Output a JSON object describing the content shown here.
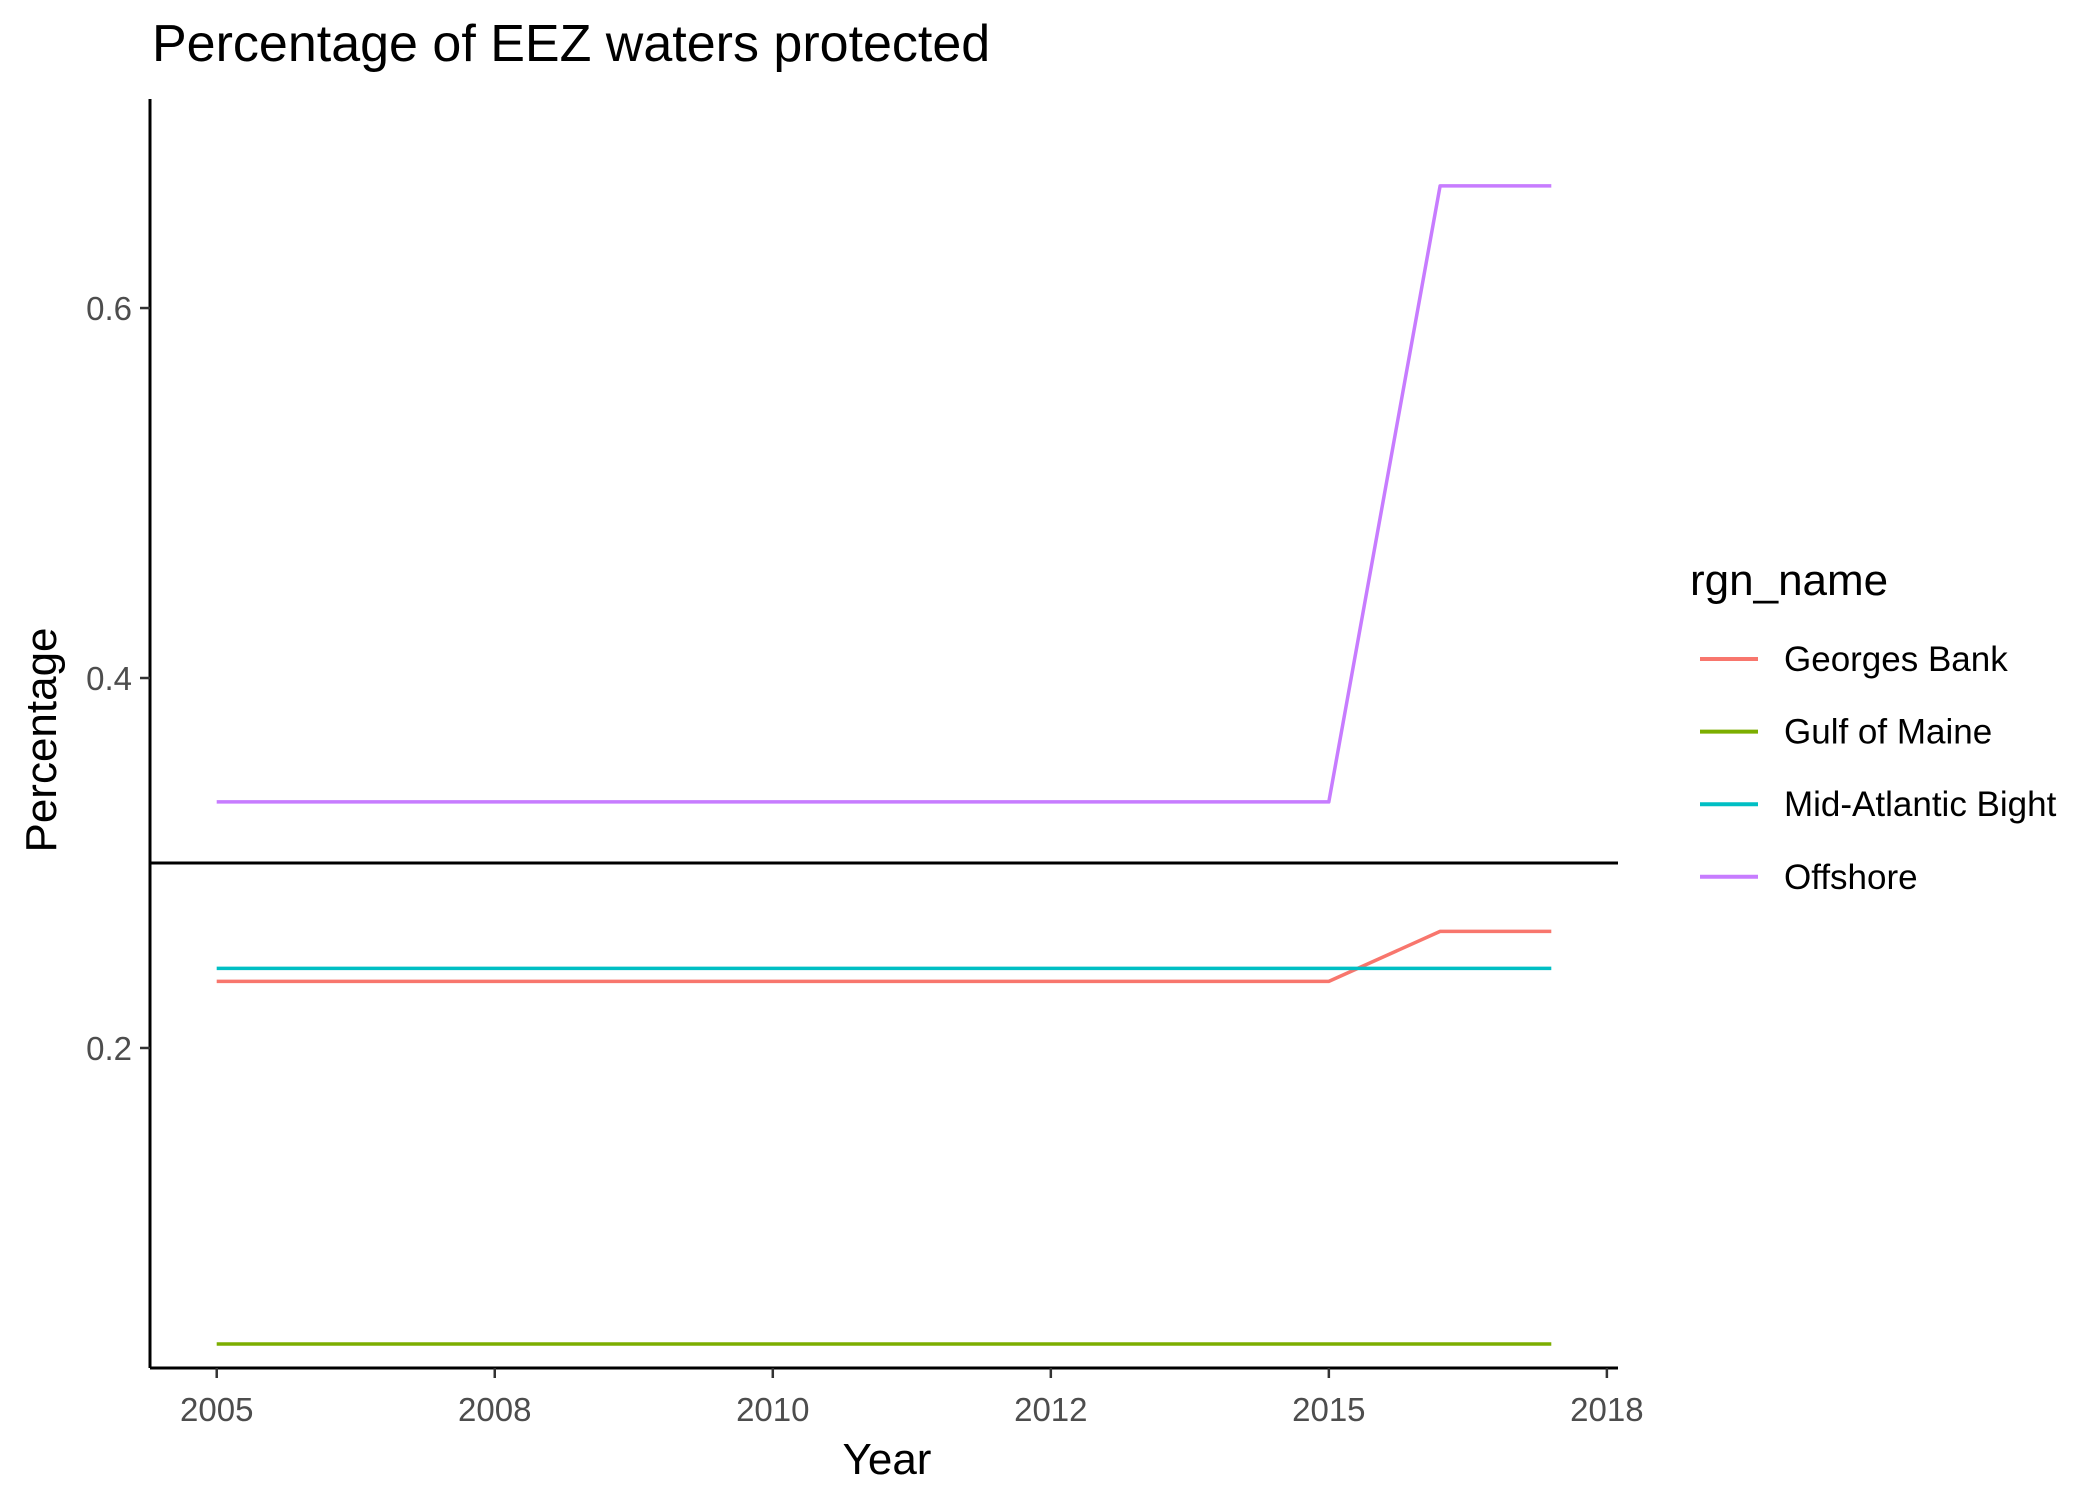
{
  "chart_data": {
    "type": "line",
    "title": "Percentage of EEZ waters protected",
    "xlabel": "Year",
    "ylabel": "Percentage",
    "x_ticks": [
      {
        "value": 2005,
        "label": "2005"
      },
      {
        "value": 2007.5,
        "label": "2008"
      },
      {
        "value": 2010,
        "label": "2010"
      },
      {
        "value": 2012.5,
        "label": "2012"
      },
      {
        "value": 2015,
        "label": "2015"
      },
      {
        "value": 2017.5,
        "label": "2018"
      }
    ],
    "y_ticks": [
      {
        "value": 0.2,
        "label": "0.2"
      },
      {
        "value": 0.4,
        "label": "0.4"
      },
      {
        "value": 0.6,
        "label": "0.6"
      }
    ],
    "xlim": [
      2004.4,
      2017.6
    ],
    "ylim": [
      0.027,
      0.713
    ],
    "grid": false,
    "reference_line": {
      "y": 0.3,
      "color": "#000000"
    },
    "legend": {
      "title": "rgn_name",
      "position": "right"
    },
    "x": [
      2005,
      2006,
      2007,
      2008,
      2009,
      2010,
      2011,
      2012,
      2013,
      2014,
      2015,
      2016,
      2017
    ],
    "series": [
      {
        "name": "Georges Bank",
        "color": "#F8766D",
        "values": [
          0.236,
          0.236,
          0.236,
          0.236,
          0.236,
          0.236,
          0.236,
          0.236,
          0.236,
          0.236,
          0.236,
          0.263,
          0.263
        ]
      },
      {
        "name": "Gulf of Maine",
        "color": "#7CAE00",
        "values": [
          0.04,
          0.04,
          0.04,
          0.04,
          0.04,
          0.04,
          0.04,
          0.04,
          0.04,
          0.04,
          0.04,
          0.04,
          0.04
        ]
      },
      {
        "name": "Mid-Atlantic Bight",
        "color": "#00BFC4",
        "values": [
          0.243,
          0.243,
          0.243,
          0.243,
          0.243,
          0.243,
          0.243,
          0.243,
          0.243,
          0.243,
          0.243,
          0.243,
          0.243
        ]
      },
      {
        "name": "Offshore",
        "color": "#C77CFF",
        "values": [
          0.333,
          0.333,
          0.333,
          0.333,
          0.333,
          0.333,
          0.333,
          0.333,
          0.333,
          0.333,
          0.333,
          0.666,
          0.666
        ]
      }
    ]
  }
}
